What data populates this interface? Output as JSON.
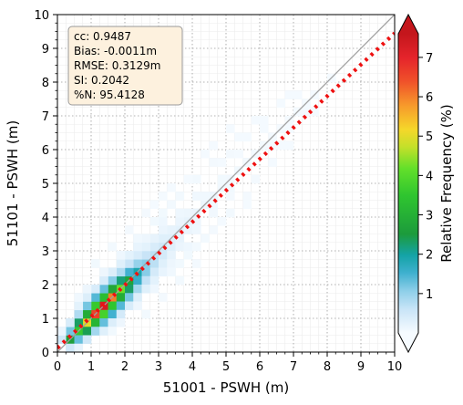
{
  "chart_data": {
    "type": "heatmap",
    "title": "",
    "xlabel": "51001 - PSWH (m)",
    "ylabel": "51101 - PSWH (m)",
    "xlim": [
      0,
      10
    ],
    "ylim": [
      0,
      10
    ],
    "xticks": [
      "0",
      "1",
      "2",
      "3",
      "4",
      "5",
      "6",
      "7",
      "8",
      "9",
      "10"
    ],
    "yticks": [
      "0",
      "1",
      "2",
      "3",
      "4",
      "5",
      "6",
      "7",
      "8",
      "9",
      "10"
    ],
    "grid": true,
    "bin_size": 0.25,
    "stats": [
      "cc: 0.9487",
      "Bias: -0.0011m",
      "RMSE: 0.3129m",
      "SI: 0.2042",
      "%N: 95.4128"
    ],
    "reference_line": {
      "name": "1:1",
      "x": [
        0,
        10
      ],
      "y": [
        0,
        10
      ],
      "color": "#a0a0a0"
    },
    "fit_line": {
      "name": "regression",
      "x": [
        0,
        10
      ],
      "y": [
        0.12,
        9.45
      ],
      "color": "#ee1111"
    },
    "colorbar": {
      "label": "Relative Frequency (%)",
      "min": 0,
      "max": 7.6,
      "ticks": [
        "1",
        "2",
        "3",
        "4",
        "5",
        "6",
        "7"
      ],
      "extend": "both"
    },
    "cells": [
      [
        0.25,
        0.25,
        2.6
      ],
      [
        0.5,
        0.5,
        3.6
      ],
      [
        0.75,
        0.75,
        5.0
      ],
      [
        1.0,
        1.0,
        6.6
      ],
      [
        1.25,
        1.25,
        7.3
      ],
      [
        1.5,
        1.5,
        6.0
      ],
      [
        1.75,
        1.75,
        4.2
      ],
      [
        2.0,
        2.0,
        2.7
      ],
      [
        2.25,
        2.25,
        1.9
      ],
      [
        2.5,
        2.5,
        1.1
      ],
      [
        2.75,
        2.75,
        0.7
      ],
      [
        3.0,
        3.0,
        0.5
      ],
      [
        3.25,
        3.25,
        0.3
      ],
      [
        3.5,
        3.5,
        0.25
      ],
      [
        3.75,
        3.75,
        0.2
      ],
      [
        4.0,
        4.0,
        0.15
      ],
      [
        4.25,
        4.25,
        0.12
      ],
      [
        4.5,
        4.5,
        0.1
      ],
      [
        4.75,
        4.75,
        0.08
      ],
      [
        5.0,
        5.0,
        0.07
      ],
      [
        5.25,
        5.25,
        0.06
      ],
      [
        5.5,
        5.5,
        0.05
      ],
      [
        5.75,
        5.75,
        0.05
      ],
      [
        6.0,
        6.0,
        0.04
      ],
      [
        6.25,
        6.25,
        0.04
      ],
      [
        6.5,
        6.5,
        0.03
      ],
      [
        6.75,
        6.75,
        0.03
      ],
      [
        7.0,
        7.0,
        0.03
      ],
      [
        7.25,
        7.25,
        0.02
      ],
      [
        7.5,
        7.5,
        0.02
      ],
      [
        0.0,
        0.25,
        0.5
      ],
      [
        0.25,
        0.0,
        0.5
      ],
      [
        0.25,
        0.5,
        1.2
      ],
      [
        0.5,
        0.25,
        1.3
      ],
      [
        0.5,
        0.75,
        2.3
      ],
      [
        0.75,
        0.5,
        2.4
      ],
      [
        0.75,
        1.0,
        2.9
      ],
      [
        1.0,
        0.75,
        3.1
      ],
      [
        1.0,
        1.25,
        3.6
      ],
      [
        1.25,
        1.0,
        3.8
      ],
      [
        1.25,
        1.5,
        3.3
      ],
      [
        1.5,
        1.25,
        3.5
      ],
      [
        1.5,
        1.75,
        2.8
      ],
      [
        1.75,
        1.5,
        2.9
      ],
      [
        1.75,
        2.0,
        2.2
      ],
      [
        2.0,
        1.75,
        2.3
      ],
      [
        2.0,
        2.25,
        1.5
      ],
      [
        2.25,
        2.0,
        1.6
      ],
      [
        2.25,
        2.5,
        1.0
      ],
      [
        2.5,
        2.25,
        1.1
      ],
      [
        2.5,
        2.75,
        0.6
      ],
      [
        2.75,
        2.5,
        0.7
      ],
      [
        2.75,
        3.0,
        0.4
      ],
      [
        3.0,
        2.75,
        0.45
      ],
      [
        3.0,
        3.25,
        0.3
      ],
      [
        3.25,
        3.0,
        0.3
      ],
      [
        3.25,
        3.5,
        0.2
      ],
      [
        3.5,
        3.25,
        0.2
      ],
      [
        3.5,
        3.75,
        0.15
      ],
      [
        3.75,
        3.5,
        0.15
      ],
      [
        3.75,
        4.0,
        0.12
      ],
      [
        4.0,
        3.75,
        0.12
      ],
      [
        4.25,
        4.5,
        0.08
      ],
      [
        4.5,
        4.25,
        0.08
      ],
      [
        4.75,
        5.0,
        0.06
      ],
      [
        5.0,
        4.75,
        0.06
      ],
      [
        0.0,
        0.5,
        0.15
      ],
      [
        0.5,
        0.0,
        0.2
      ],
      [
        0.25,
        0.75,
        0.4
      ],
      [
        0.75,
        0.25,
        0.5
      ],
      [
        0.5,
        1.0,
        0.8
      ],
      [
        1.0,
        0.5,
        0.9
      ],
      [
        0.75,
        1.25,
        1.2
      ],
      [
        1.25,
        0.75,
        1.3
      ],
      [
        1.0,
        1.5,
        1.4
      ],
      [
        1.5,
        1.0,
        1.5
      ],
      [
        1.25,
        1.75,
        1.3
      ],
      [
        1.75,
        1.25,
        1.4
      ],
      [
        1.5,
        2.0,
        1.1
      ],
      [
        2.0,
        1.5,
        1.2
      ],
      [
        1.75,
        2.25,
        0.8
      ],
      [
        2.25,
        1.75,
        0.9
      ],
      [
        2.0,
        2.5,
        0.6
      ],
      [
        2.5,
        2.0,
        0.65
      ],
      [
        2.25,
        2.75,
        0.4
      ],
      [
        2.75,
        2.25,
        0.45
      ],
      [
        2.5,
        3.0,
        0.25
      ],
      [
        3.0,
        2.5,
        0.3
      ],
      [
        2.75,
        3.25,
        0.2
      ],
      [
        3.25,
        2.75,
        0.2
      ],
      [
        3.0,
        3.5,
        0.15
      ],
      [
        3.5,
        3.0,
        0.15
      ],
      [
        3.5,
        4.0,
        0.1
      ],
      [
        4.0,
        3.5,
        0.1
      ],
      [
        4.0,
        4.5,
        0.08
      ],
      [
        4.5,
        4.0,
        0.07
      ],
      [
        0.5,
        1.25,
        0.25
      ],
      [
        1.25,
        0.5,
        0.3
      ],
      [
        0.75,
        1.5,
        0.35
      ],
      [
        1.5,
        0.75,
        0.35
      ],
      [
        1.0,
        1.75,
        0.4
      ],
      [
        1.75,
        1.0,
        0.45
      ],
      [
        1.25,
        2.0,
        0.4
      ],
      [
        2.0,
        1.25,
        0.4
      ],
      [
        1.5,
        2.25,
        0.35
      ],
      [
        2.25,
        1.5,
        0.35
      ],
      [
        1.75,
        2.5,
        0.3
      ],
      [
        2.5,
        1.75,
        0.3
      ],
      [
        2.0,
        2.75,
        0.25
      ],
      [
        2.75,
        2.0,
        0.25
      ],
      [
        2.25,
        3.0,
        0.18
      ],
      [
        3.0,
        2.25,
        0.18
      ],
      [
        2.5,
        3.25,
        0.12
      ],
      [
        3.25,
        2.5,
        0.12
      ],
      [
        3.0,
        3.75,
        0.1
      ],
      [
        3.75,
        3.0,
        0.1
      ],
      [
        0.75,
        1.75,
        0.12
      ],
      [
        1.75,
        0.75,
        0.12
      ],
      [
        1.25,
        2.25,
        0.12
      ],
      [
        2.25,
        1.25,
        0.12
      ],
      [
        1.75,
        2.75,
        0.1
      ],
      [
        2.75,
        1.75,
        0.1
      ],
      [
        2.25,
        3.25,
        0.08
      ],
      [
        3.25,
        2.25,
        0.08
      ],
      [
        2.75,
        3.75,
        0.06
      ],
      [
        3.75,
        2.75,
        0.06
      ],
      [
        3.25,
        4.25,
        0.05
      ],
      [
        4.25,
        3.25,
        0.05
      ],
      [
        4.0,
        5.0,
        0.05
      ],
      [
        5.0,
        4.0,
        0.05
      ],
      [
        4.5,
        5.5,
        0.04
      ],
      [
        5.5,
        4.5,
        0.04
      ],
      [
        5.0,
        5.75,
        0.04
      ],
      [
        5.75,
        5.0,
        0.04
      ],
      [
        5.5,
        6.25,
        0.03
      ],
      [
        6.25,
        5.5,
        0.03
      ],
      [
        6.0,
        6.75,
        0.03
      ],
      [
        6.75,
        6.0,
        0.03
      ],
      [
        6.5,
        7.25,
        0.02
      ],
      [
        7.0,
        7.5,
        0.02
      ],
      [
        7.5,
        7.0,
        0.02
      ],
      [
        8.0,
        8.0,
        0.02
      ],
      [
        4.5,
        6.0,
        0.03
      ],
      [
        5.0,
        6.5,
        0.03
      ],
      [
        4.25,
        5.75,
        0.02
      ],
      [
        5.25,
        6.25,
        0.03
      ],
      [
        5.75,
        6.75,
        0.02
      ],
      [
        4.75,
        3.75,
        0.03
      ],
      [
        5.5,
        4.25,
        0.02
      ],
      [
        6.25,
        6.0,
        0.03
      ],
      [
        6.75,
        6.5,
        0.02
      ],
      [
        3.75,
        5.0,
        0.03
      ],
      [
        3.5,
        4.5,
        0.05
      ],
      [
        3.0,
        4.0,
        0.06
      ],
      [
        4.0,
        2.5,
        0.04
      ],
      [
        3.5,
        2.0,
        0.05
      ],
      [
        1.0,
        2.5,
        0.06
      ],
      [
        1.5,
        3.0,
        0.05
      ],
      [
        2.0,
        3.5,
        0.04
      ],
      [
        2.5,
        4.0,
        0.04
      ],
      [
        3.0,
        4.5,
        0.03
      ],
      [
        2.75,
        4.25,
        0.03
      ],
      [
        3.25,
        4.75,
        0.02
      ],
      [
        0.5,
        1.5,
        0.08
      ],
      [
        1.5,
        0.5,
        0.06
      ],
      [
        2.5,
        1.0,
        0.05
      ],
      [
        3.0,
        1.5,
        0.04
      ],
      [
        3.5,
        2.5,
        0.06
      ],
      [
        4.0,
        3.0,
        0.05
      ],
      [
        4.5,
        3.5,
        0.04
      ],
      [
        5.0,
        4.5,
        0.04
      ],
      [
        4.75,
        5.5,
        0.03
      ],
      [
        5.25,
        5.75,
        0.03
      ],
      [
        6.0,
        6.5,
        0.03
      ],
      [
        6.5,
        6.0,
        0.02
      ],
      [
        7.25,
        7.0,
        0.02
      ],
      [
        6.75,
        7.5,
        0.02
      ]
    ]
  }
}
